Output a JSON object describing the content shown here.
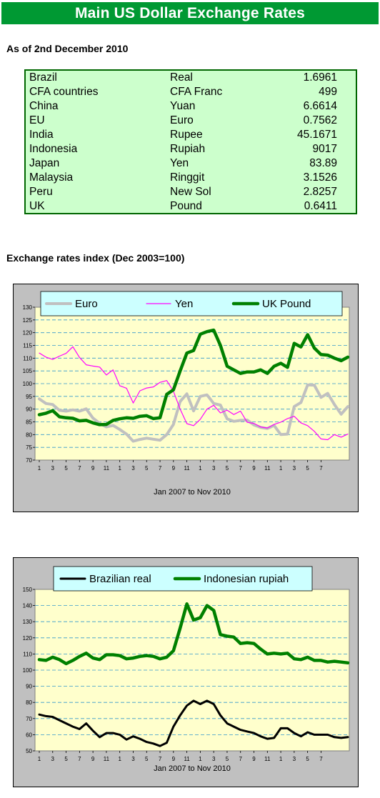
{
  "header": {
    "title": "Main US Dollar Exchange Rates"
  },
  "as_of": "As of 2nd December 2010",
  "rates_table": [
    {
      "country": "Brazil",
      "currency": "Real",
      "rate": "1.6961"
    },
    {
      "country": "CFA countries",
      "currency": "CFA Franc",
      "rate": "499"
    },
    {
      "country": "China",
      "currency": "Yuan",
      "rate": "6.6614"
    },
    {
      "country": "EU",
      "currency": "Euro",
      "rate": "0.7562"
    },
    {
      "country": "India",
      "currency": "Rupee",
      "rate": "45.1671"
    },
    {
      "country": "Indonesia",
      "currency": "Rupiah",
      "rate": "9017"
    },
    {
      "country": "Japan",
      "currency": "Yen",
      "rate": "83.89"
    },
    {
      "country": "Malaysia",
      "currency": "Ringgit",
      "rate": "3.1526"
    },
    {
      "country": "Peru",
      "currency": "New Sol",
      "rate": "2.8257"
    },
    {
      "country": "UK",
      "currency": "Pound",
      "rate": "0.6411"
    }
  ],
  "index_heading": "Exchange rates index (Dec 2003=100)",
  "colors": {
    "banner": "#009933",
    "table_bg": "#ccffcc",
    "plot_bg": "#ffffcc",
    "euro": "#c0c0c0",
    "yen": "#ff00ff",
    "pound": "#008000",
    "real": "#000000",
    "rupiah": "#008000"
  },
  "chart_data": [
    {
      "type": "line",
      "xlabel": "Jan 2007 to Nov 2010",
      "ylabel": "",
      "ylim": [
        70,
        130
      ],
      "yticks": [
        70,
        75,
        80,
        85,
        90,
        95,
        100,
        105,
        110,
        115,
        120,
        125,
        130
      ],
      "xticks": [
        "1",
        "3",
        "5",
        "7",
        "9",
        "11",
        "1",
        "3",
        "5",
        "7",
        "9",
        "11",
        "1",
        "3",
        "5",
        "7",
        "9",
        "11",
        "1",
        "3",
        "5",
        "7"
      ],
      "grid": true,
      "legend": "top",
      "x": [
        "2007-01",
        "2007-02",
        "2007-03",
        "2007-04",
        "2007-05",
        "2007-06",
        "2007-07",
        "2007-08",
        "2007-09",
        "2007-10",
        "2007-11",
        "2007-12",
        "2008-01",
        "2008-02",
        "2008-03",
        "2008-04",
        "2008-05",
        "2008-06",
        "2008-07",
        "2008-08",
        "2008-09",
        "2008-10",
        "2008-11",
        "2008-12",
        "2009-01",
        "2009-02",
        "2009-03",
        "2009-04",
        "2009-05",
        "2009-06",
        "2009-07",
        "2009-08",
        "2009-09",
        "2009-10",
        "2009-11",
        "2009-12",
        "2010-01",
        "2010-02",
        "2010-03",
        "2010-04",
        "2010-05",
        "2010-06",
        "2010-07",
        "2010-08",
        "2010-09",
        "2010-10",
        "2010-11"
      ],
      "series": [
        {
          "name": "Euro",
          "values": [
            94.0,
            92.2,
            91.8,
            89.5,
            89.2,
            89.7,
            89.2,
            90.1,
            86.5,
            84.4,
            83.0,
            83.6,
            82.0,
            80.2,
            77.4,
            78.1,
            78.6,
            78.2,
            77.8,
            80.0,
            84.0,
            93.0,
            96.0,
            89.3,
            95.0,
            95.6,
            92.2,
            91.6,
            86.2,
            85.2,
            85.6,
            85.7,
            83.8,
            82.8,
            82.4,
            83.6,
            80.0,
            80.2,
            91.0,
            92.6,
            99.5,
            99.4,
            94.6,
            96.2,
            91.8,
            88.0,
            91.0
          ]
        },
        {
          "name": "Yen",
          "values": [
            112.0,
            110.4,
            109.5,
            110.8,
            111.9,
            114.5,
            110.3,
            107.4,
            106.9,
            106.5,
            103.4,
            105.4,
            99.2,
            98.2,
            92.4,
            97.2,
            98.3,
            98.7,
            100.5,
            101.2,
            97.0,
            90.0,
            84.3,
            83.5,
            86.0,
            90.0,
            91.5,
            88.5,
            89.6,
            87.9,
            89.2,
            84.8,
            84.4,
            83.0,
            82.6,
            84.0,
            84.9,
            86.3,
            87.2,
            84.6,
            83.5,
            81.3,
            78.3,
            78.0,
            80.0,
            79.0,
            80.2
          ]
        },
        {
          "name": "UK Pound",
          "values": [
            87.8,
            88.4,
            89.4,
            87.0,
            86.6,
            86.4,
            85.4,
            85.6,
            84.6,
            83.9,
            84.0,
            85.6,
            86.2,
            86.6,
            86.4,
            87.2,
            87.4,
            86.3,
            86.6,
            95.8,
            97.6,
            105.0,
            112.0,
            113.0,
            119.4,
            120.4,
            121.0,
            115.0,
            106.8,
            105.4,
            104.0,
            104.6,
            104.6,
            105.4,
            104.0,
            106.8,
            108.0,
            106.4,
            115.8,
            114.4,
            119.2,
            114.0,
            111.4,
            111.2,
            110.0,
            109.0,
            110.4
          ]
        }
      ]
    },
    {
      "type": "line",
      "xlabel": "Jan 2007 to Nov 2010",
      "ylabel": "",
      "ylim": [
        50,
        150
      ],
      "yticks": [
        50,
        60,
        70,
        80,
        90,
        100,
        110,
        120,
        130,
        140,
        150
      ],
      "xticks": [
        "1",
        "3",
        "5",
        "7",
        "9",
        "11",
        "1",
        "3",
        "5",
        "7",
        "9",
        "11",
        "1",
        "3",
        "5",
        "7",
        "9",
        "11",
        "1",
        "3",
        "5",
        "7"
      ],
      "grid": true,
      "legend": "top",
      "x": [
        "2007-01",
        "2007-02",
        "2007-03",
        "2007-04",
        "2007-05",
        "2007-06",
        "2007-07",
        "2007-08",
        "2007-09",
        "2007-10",
        "2007-11",
        "2007-12",
        "2008-01",
        "2008-02",
        "2008-03",
        "2008-04",
        "2008-05",
        "2008-06",
        "2008-07",
        "2008-08",
        "2008-09",
        "2008-10",
        "2008-11",
        "2008-12",
        "2009-01",
        "2009-02",
        "2009-03",
        "2009-04",
        "2009-05",
        "2009-06",
        "2009-07",
        "2009-08",
        "2009-09",
        "2009-10",
        "2009-11",
        "2009-12",
        "2010-01",
        "2010-02",
        "2010-03",
        "2010-04",
        "2010-05",
        "2010-06",
        "2010-07",
        "2010-08",
        "2010-09",
        "2010-10",
        "2010-11"
      ],
      "series": [
        {
          "name": "Brazilian real",
          "values": [
            72.5,
            71.5,
            71.0,
            69.0,
            67.0,
            65.0,
            63.5,
            67.0,
            62.5,
            58.5,
            61.0,
            61.0,
            60.0,
            57.0,
            59.0,
            57.5,
            55.5,
            54.5,
            53.0,
            55.0,
            65.0,
            72.0,
            78.0,
            81.0,
            79.0,
            81.0,
            79.0,
            72.0,
            67.0,
            65.0,
            63.0,
            62.0,
            61.0,
            59.0,
            57.5,
            58.0,
            64.0,
            64.0,
            61.0,
            59.0,
            61.5,
            60.0,
            60.0,
            60.0,
            58.5,
            58.0,
            58.5
          ]
        },
        {
          "name": "Indonesian rupiah",
          "values": [
            106.5,
            106.0,
            108.0,
            106.5,
            104.0,
            106.0,
            108.5,
            110.5,
            107.5,
            106.5,
            109.5,
            109.5,
            109.0,
            107.0,
            107.5,
            108.5,
            109.0,
            108.5,
            107.0,
            108.0,
            112.0,
            126.0,
            141.0,
            131.0,
            132.5,
            140.0,
            137.0,
            122.0,
            121.0,
            120.5,
            116.5,
            117.0,
            116.5,
            113.0,
            110.0,
            110.5,
            110.0,
            110.5,
            107.0,
            106.5,
            108.0,
            106.0,
            106.0,
            105.0,
            105.5,
            105.0,
            104.5
          ]
        }
      ]
    }
  ]
}
